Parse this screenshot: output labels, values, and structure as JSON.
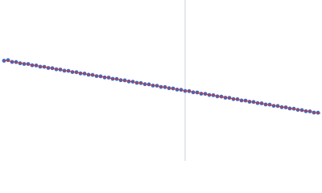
{
  "chart_data": {
    "type": "scatter",
    "xlim": [
      0,
      400
    ],
    "ylim": [
      0,
      200
    ],
    "vline": 230,
    "vline_color": "#c8d0e0",
    "series": [
      {
        "color": "#3a6bc0",
        "x": [
          5,
          10,
          15,
          20,
          25,
          30,
          35,
          40,
          45,
          50,
          55,
          60,
          65,
          70,
          75,
          80,
          85,
          90,
          95,
          100,
          105,
          110,
          115,
          120,
          125,
          130,
          135,
          140,
          145,
          150,
          155,
          160,
          165,
          170,
          175,
          180,
          185,
          190,
          195,
          200,
          205,
          210,
          215,
          220,
          225,
          230,
          235,
          240,
          245,
          250,
          255,
          260,
          265,
          270,
          275,
          280,
          285,
          290,
          295,
          300,
          305,
          310,
          315,
          320,
          325,
          330,
          335,
          340,
          345,
          350,
          355,
          360,
          365,
          370,
          375,
          380,
          385,
          390,
          395
        ],
        "values": [
          124.5,
          125.2,
          123.0,
          122.8,
          121.3,
          120.5,
          120.4,
          118.8,
          118.6,
          117.1,
          116.9,
          115.5,
          115.2,
          113.8,
          113.5,
          112.1,
          111.9,
          110.4,
          110.2,
          108.7,
          108.5,
          107.1,
          106.8,
          105.4,
          105.1,
          103.7,
          103.5,
          102.0,
          101.8,
          100.3,
          100.1,
          98.7,
          98.4,
          97.0,
          96.7,
          95.3,
          95.1,
          93.6,
          93.4,
          91.9,
          91.7,
          90.3,
          90.0,
          88.6,
          88.3,
          86.9,
          86.7,
          85.2,
          85.0,
          83.5,
          83.3,
          81.9,
          81.6,
          80.2,
          79.9,
          78.5,
          78.3,
          76.8,
          76.6,
          75.1,
          74.9,
          73.5,
          73.2,
          71.8,
          71.5,
          70.1,
          69.9,
          68.4,
          68.2,
          66.7,
          66.5,
          65.1,
          64.8,
          63.4,
          63.1,
          61.7,
          61.5,
          60.0,
          59.8
        ]
      },
      {
        "color": "#e03030",
        "line": true,
        "x": [
          5,
          398
        ],
        "values": [
          125,
          59
        ]
      }
    ]
  }
}
